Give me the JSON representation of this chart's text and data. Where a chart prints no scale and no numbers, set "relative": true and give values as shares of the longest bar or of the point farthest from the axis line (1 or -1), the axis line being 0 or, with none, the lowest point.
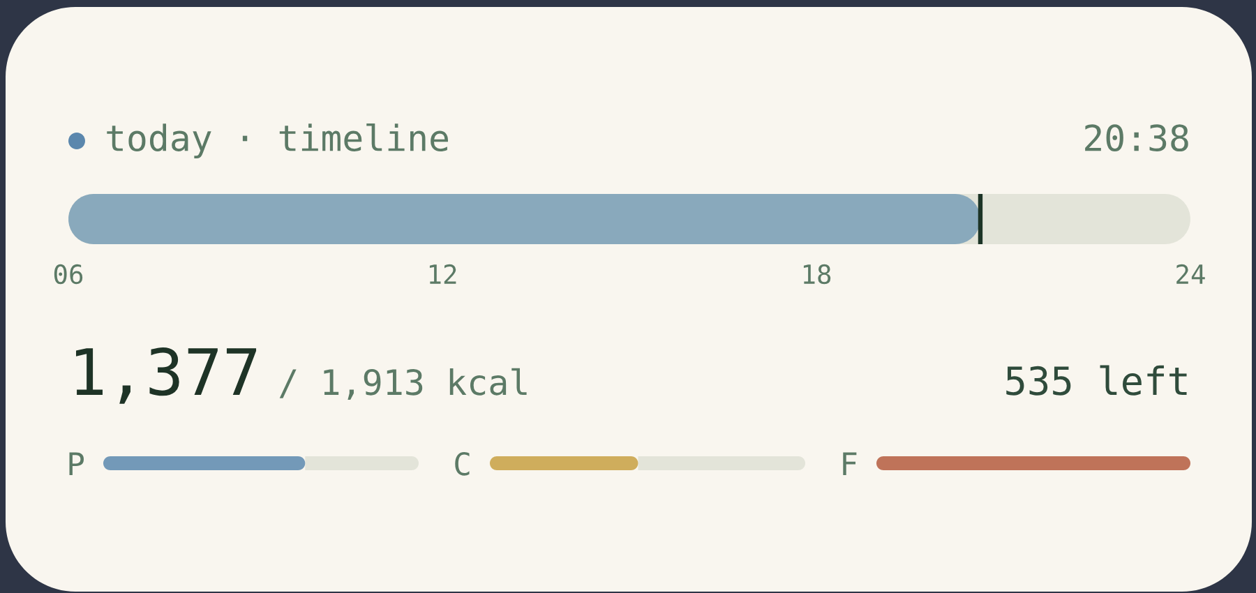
{
  "chart_data": [
    {
      "type": "bar",
      "orientation": "horizontal",
      "title": "today · timeline",
      "categories": [
        null
      ],
      "base": [
        6
      ],
      "values": [
        14.63
      ],
      "color": "#89a9bc",
      "xlim": [
        6,
        24
      ],
      "xticks": [
        {
          "value": 6,
          "label": "06"
        },
        12,
        18,
        {
          "value": 24,
          "label": "24"
        }
      ],
      "tick_labels": "x",
      "ref_lines": [
        {
          "axis": "x",
          "value": 20.63,
          "color": "#1c3426"
        }
      ],
      "annotations": [
        "20:38"
      ]
    },
    {
      "type": "other",
      "annotations": [
        "1,377",
        "/ 1,913 kcal",
        "535 left"
      ]
    },
    {
      "type": "bar",
      "orientation": "horizontal",
      "stacked": true,
      "relative": true,
      "categories": [
        "P"
      ],
      "series": [
        {
          "color": "#7399b8",
          "values": [
            0.64
          ]
        },
        {
          "color": "#e3e4d9",
          "values": [
            0.36
          ]
        }
      ],
      "tick_labels": "y"
    },
    {
      "type": "bar",
      "orientation": "horizontal",
      "stacked": true,
      "relative": true,
      "categories": [
        "C"
      ],
      "series": [
        {
          "color": "#cfad5c",
          "values": [
            0.47
          ]
        },
        {
          "color": "#e3e4d9",
          "values": [
            0.53
          ]
        }
      ],
      "tick_labels": "y"
    },
    {
      "type": "bar",
      "orientation": "horizontal",
      "relative": true,
      "categories": [
        "F"
      ],
      "series": [
        {
          "color": "#bf7359",
          "values": [
            1
          ]
        }
      ],
      "tick_labels": "y"
    }
  ]
}
